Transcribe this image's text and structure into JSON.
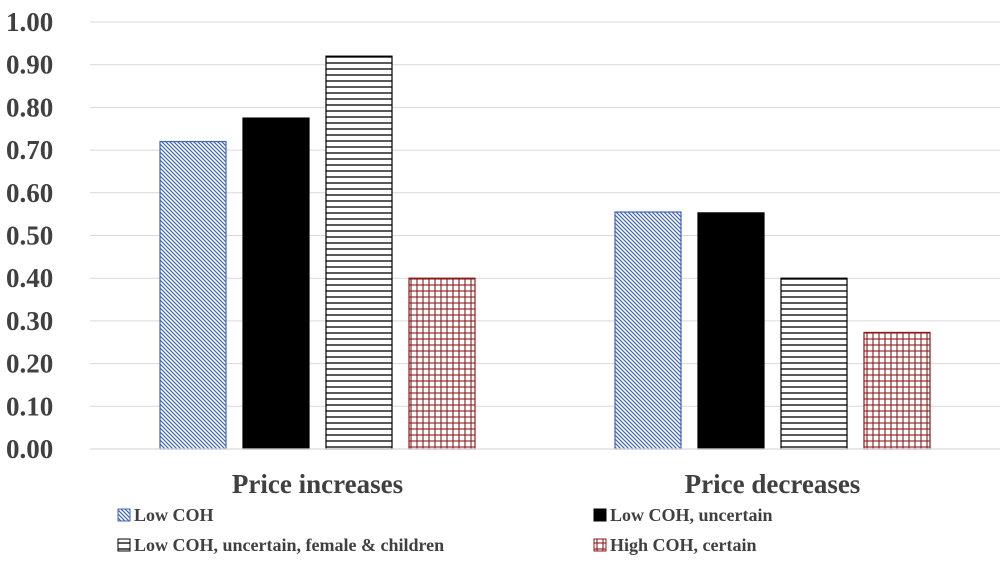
{
  "chart_data": {
    "type": "bar",
    "title": "",
    "xlabel": "",
    "ylabel": "",
    "categories": [
      "Price increases",
      "Price decreases"
    ],
    "y_ticks": [
      "0.00",
      "0.10",
      "0.20",
      "0.30",
      "0.40",
      "0.50",
      "0.60",
      "0.70",
      "0.80",
      "0.90",
      "1.00"
    ],
    "ylim": [
      0,
      1.0
    ],
    "grid": true,
    "legend_position": "bottom",
    "series": [
      {
        "name": "Low COH",
        "values": [
          0.72,
          0.555
        ],
        "pattern": "diagonal-hatch",
        "color": "#3f66b5"
      },
      {
        "name": "Low COH, uncertain",
        "values": [
          0.775,
          0.553
        ],
        "pattern": "solid",
        "color": "#000000"
      },
      {
        "name": "Low COH, uncertain, female & children",
        "values": [
          0.92,
          0.4
        ],
        "pattern": "horizontal-lines",
        "color": "#000000"
      },
      {
        "name": "High COH, certain",
        "values": [
          0.4,
          0.273
        ],
        "pattern": "grid",
        "color": "#8b1a1a"
      }
    ]
  }
}
